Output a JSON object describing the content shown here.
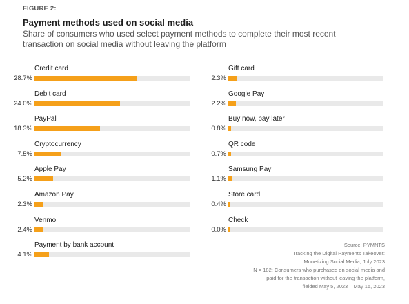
{
  "figure_label": "FIGURE 2:",
  "title": "Payment methods used on social media",
  "subtitle": "Share of consumers who used select payment methods to complete their most recent transaction on social media without leaving the platform",
  "colors": {
    "bar": "#f5a01a",
    "track": "#e9e9e9"
  },
  "chart_data": {
    "type": "bar",
    "orientation": "horizontal",
    "title": "Payment methods used on social media",
    "xlim": [
      0,
      100
    ],
    "unit": "%",
    "left_column": [
      {
        "category": "Credit card",
        "value": 28.7,
        "label": "28.7%"
      },
      {
        "category": "Debit card",
        "value": 24.0,
        "label": "24.0%"
      },
      {
        "category": "PayPal",
        "value": 18.3,
        "label": "18.3%"
      },
      {
        "category": "Cryptocurrency",
        "value": 7.5,
        "label": "7.5%"
      },
      {
        "category": "Apple Pay",
        "value": 5.2,
        "label": "5.2%"
      },
      {
        "category": "Amazon Pay",
        "value": 2.3,
        "label": "2.3%"
      },
      {
        "category": "Venmo",
        "value": 2.4,
        "label": "2.4%"
      },
      {
        "category": "Payment by bank account",
        "value": 4.1,
        "label": "4.1%"
      }
    ],
    "right_column": [
      {
        "category": "Gift card",
        "value": 2.3,
        "label": "2.3%"
      },
      {
        "category": "Google Pay",
        "value": 2.2,
        "label": "2.2%"
      },
      {
        "category": "Buy now, pay later",
        "value": 0.8,
        "label": "0.8%"
      },
      {
        "category": "QR code",
        "value": 0.7,
        "label": "0.7%"
      },
      {
        "category": "Samsung Pay",
        "value": 1.1,
        "label": "1.1%"
      },
      {
        "category": "Store card",
        "value": 0.4,
        "label": "0.4%"
      },
      {
        "category": "Check",
        "value": 0.0,
        "label": "0.0%"
      }
    ]
  },
  "source": [
    "Source: PYMNTS",
    "Tracking the Digital Payments Takeover:",
    "Monetizing Social Media, July 2023",
    "N = 182: Consumers who purchased on social media and",
    "paid for the transaction without leaving the platform,",
    "fielded May 5, 2023 – May 15, 2023"
  ]
}
